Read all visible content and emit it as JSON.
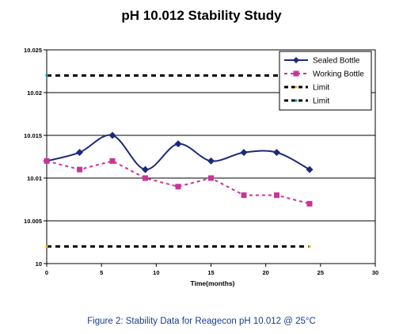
{
  "caption": "Figure 2: Stability Data for Reagecon pH 10.012 @ 25°C",
  "chart_data": {
    "type": "line",
    "title": "pH 10.012 Stability Study",
    "xlabel": "Time(months)",
    "ylabel": "",
    "xlim": [
      0,
      30
    ],
    "ylim": [
      10,
      10.025
    ],
    "x_ticks": [
      "0",
      "5",
      "10",
      "15",
      "20",
      "25",
      "30"
    ],
    "y_ticks": [
      "10",
      "10.005",
      "10.01",
      "10.015",
      "10.02",
      "10.025"
    ],
    "grid": "horizontal",
    "legend_position": "top-right",
    "series": [
      {
        "name": "Sealed Bottle",
        "color": "#1c2a7a",
        "style": "solid-smooth",
        "marker": "diamond",
        "x": [
          0,
          3,
          6,
          9,
          12,
          15,
          18,
          21,
          24
        ],
        "y": [
          10.012,
          10.013,
          10.015,
          10.011,
          10.014,
          10.012,
          10.013,
          10.013,
          10.011
        ]
      },
      {
        "name": "Working Bottle",
        "color": "#cc3399",
        "style": "dashed",
        "marker": "square",
        "x": [
          0,
          3,
          6,
          9,
          12,
          15,
          18,
          21,
          24
        ],
        "y": [
          10.012,
          10.011,
          10.012,
          10.01,
          10.009,
          10.01,
          10.008,
          10.008,
          10.007
        ]
      },
      {
        "name": "Limit",
        "color": "#000000",
        "marker_color": "#e6c200",
        "style": "dashed",
        "marker": "none",
        "x": [
          0,
          24
        ],
        "y": [
          10.002,
          10.002
        ]
      },
      {
        "name": "Limit",
        "color": "#000000",
        "marker_color": "#00a0c8",
        "style": "dashed",
        "marker": "none",
        "x": [
          0,
          24
        ],
        "y": [
          10.022,
          10.022
        ]
      }
    ]
  }
}
